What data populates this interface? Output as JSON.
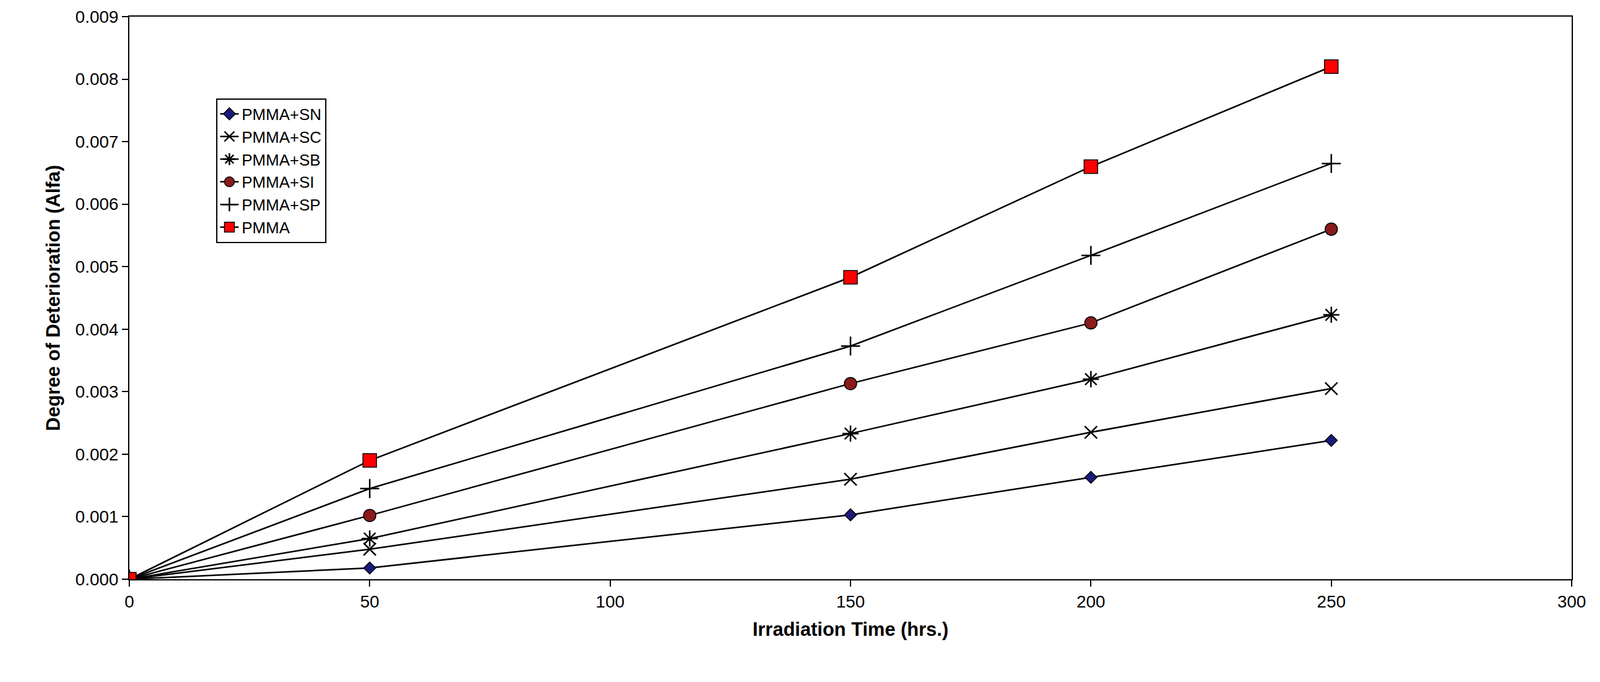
{
  "chart_data": {
    "type": "line",
    "x_label": "Irradiation Time (hrs.)",
    "y_label": "Degree of Deterioration (Alfa)",
    "x": [
      0,
      50,
      150,
      200,
      250
    ],
    "series": [
      {
        "name": "PMMA+SN",
        "color": "#1a1a7a",
        "marker": "diamond",
        "values": [
          0,
          0.00018,
          0.00103,
          0.00163,
          0.00222
        ]
      },
      {
        "name": "PMMA+SC",
        "color": "#000000",
        "marker": "x",
        "values": [
          0,
          0.00048,
          0.0016,
          0.00235,
          0.00305
        ]
      },
      {
        "name": "PMMA+SB",
        "color": "#000000",
        "marker": "asterisk",
        "values": [
          0,
          0.00065,
          0.00233,
          0.0032,
          0.00423
        ]
      },
      {
        "name": "PMMA+SI",
        "color": "#8b1a1a",
        "marker": "circle",
        "values": [
          0,
          0.00102,
          0.00313,
          0.0041,
          0.0056
        ]
      },
      {
        "name": "PMMA+SP",
        "color": "#000000",
        "marker": "cross",
        "values": [
          0,
          0.00145,
          0.00373,
          0.00518,
          0.00665
        ]
      },
      {
        "name": "PMMA",
        "color": "#ff0000",
        "marker": "square",
        "values": [
          0,
          0.0019,
          0.00483,
          0.0066,
          0.0082
        ]
      }
    ],
    "xlim": [
      0,
      300
    ],
    "xticks": [
      0,
      50,
      100,
      150,
      200,
      250,
      300
    ],
    "ylim": [
      0,
      0.009
    ],
    "yticks": [
      {
        "value": 0,
        "label": "0.000"
      },
      {
        "value": 0.001,
        "label": "0.001"
      },
      {
        "value": 0.002,
        "label": "0.002"
      },
      {
        "value": 0.003,
        "label": "0.003"
      },
      {
        "value": 0.004,
        "label": "0.004"
      },
      {
        "value": 0.005,
        "label": "0.005"
      },
      {
        "value": 0.006,
        "label": "0.006"
      },
      {
        "value": 0.007,
        "label": "0.007"
      },
      {
        "value": 0.008,
        "label": "0.008"
      },
      {
        "value": 0.009,
        "label": "0.009"
      }
    ],
    "grid": false,
    "legend": "upper left"
  }
}
